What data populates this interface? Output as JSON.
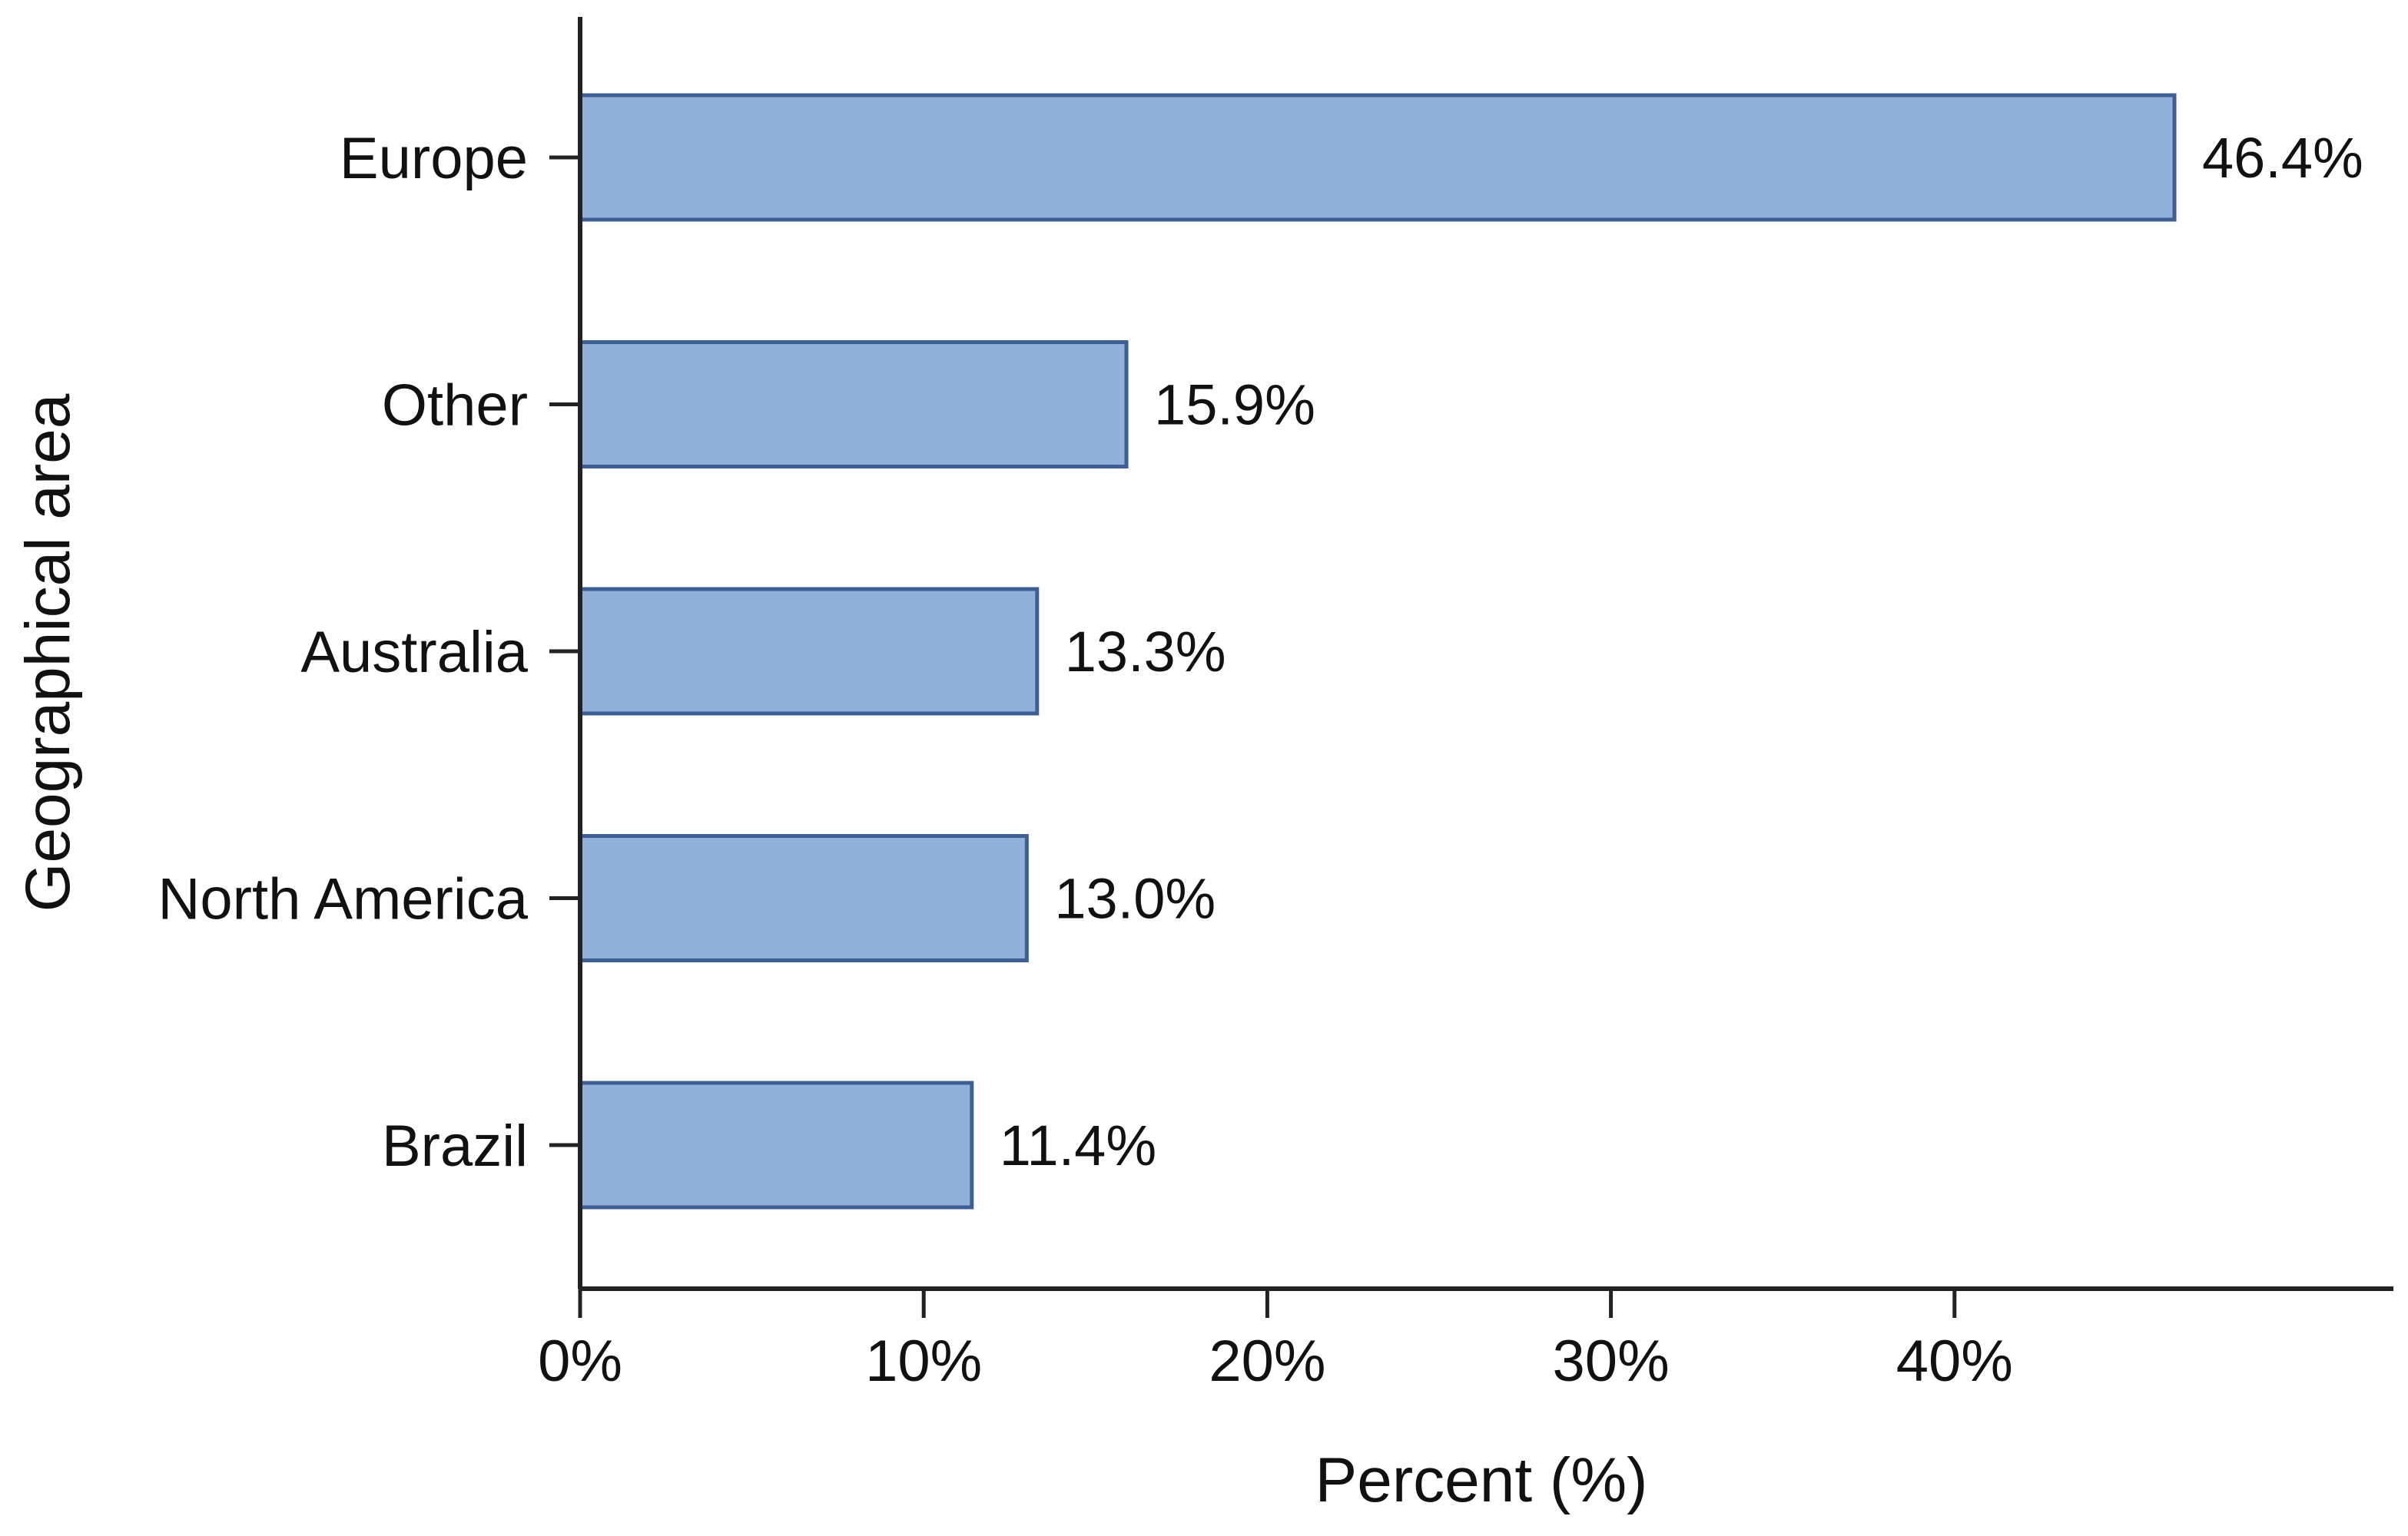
{
  "chart_data": {
    "type": "bar",
    "orientation": "horizontal",
    "categories": [
      "Europe",
      "Other",
      "Australia",
      "North America",
      "Brazil"
    ],
    "values": [
      46.4,
      15.9,
      13.3,
      13.0,
      11.4
    ],
    "value_labels": [
      "46.4%",
      "15.9%",
      "13.3%",
      "13.0%",
      "11.4%"
    ],
    "xlabel": "Percent (%)",
    "ylabel": "Geographical area",
    "xlim": [
      0,
      50
    ],
    "xticks": [
      0,
      10,
      20,
      30,
      40
    ],
    "xtick_labels": [
      "0%",
      "10%",
      "20%",
      "30%",
      "40%"
    ],
    "grid": false,
    "legend": "none",
    "colors": {
      "bar_fill": "#91b0da",
      "bar_stroke": "#3e5f94",
      "axis": "#222222",
      "text": "#111111"
    }
  }
}
